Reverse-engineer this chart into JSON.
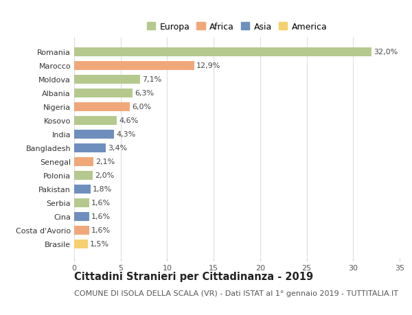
{
  "countries": [
    "Romania",
    "Marocco",
    "Moldova",
    "Albania",
    "Nigeria",
    "Kosovo",
    "India",
    "Bangladesh",
    "Senegal",
    "Polonia",
    "Pakistan",
    "Serbia",
    "Cina",
    "Costa d'Avorio",
    "Brasile"
  ],
  "values": [
    32.0,
    12.9,
    7.1,
    6.3,
    6.0,
    4.6,
    4.3,
    3.4,
    2.1,
    2.0,
    1.8,
    1.6,
    1.6,
    1.6,
    1.5
  ],
  "labels": [
    "32,0%",
    "12,9%",
    "7,1%",
    "6,3%",
    "6,0%",
    "4,6%",
    "4,3%",
    "3,4%",
    "2,1%",
    "2,0%",
    "1,8%",
    "1,6%",
    "1,6%",
    "1,6%",
    "1,5%"
  ],
  "continents": [
    "Europa",
    "Africa",
    "Europa",
    "Europa",
    "Africa",
    "Europa",
    "Asia",
    "Asia",
    "Africa",
    "Europa",
    "Asia",
    "Europa",
    "Asia",
    "Africa",
    "America"
  ],
  "colors": {
    "Europa": "#b5c98e",
    "Africa": "#f0a87a",
    "Asia": "#6e8fbe",
    "America": "#f5d06e"
  },
  "legend_order": [
    "Europa",
    "Africa",
    "Asia",
    "America"
  ],
  "title": "Cittadini Stranieri per Cittadinanza - 2019",
  "subtitle": "COMUNE DI ISOLA DELLA SCALA (VR) - Dati ISTAT al 1° gennaio 2019 - TUTTITALIA.IT",
  "xlim": [
    0,
    35
  ],
  "xticks": [
    0,
    5,
    10,
    15,
    20,
    25,
    30,
    35
  ],
  "background_color": "#ffffff",
  "grid_color": "#dddddd",
  "bar_height": 0.65,
  "title_fontsize": 10.5,
  "subtitle_fontsize": 8,
  "label_fontsize": 8,
  "tick_fontsize": 8,
  "legend_fontsize": 9
}
